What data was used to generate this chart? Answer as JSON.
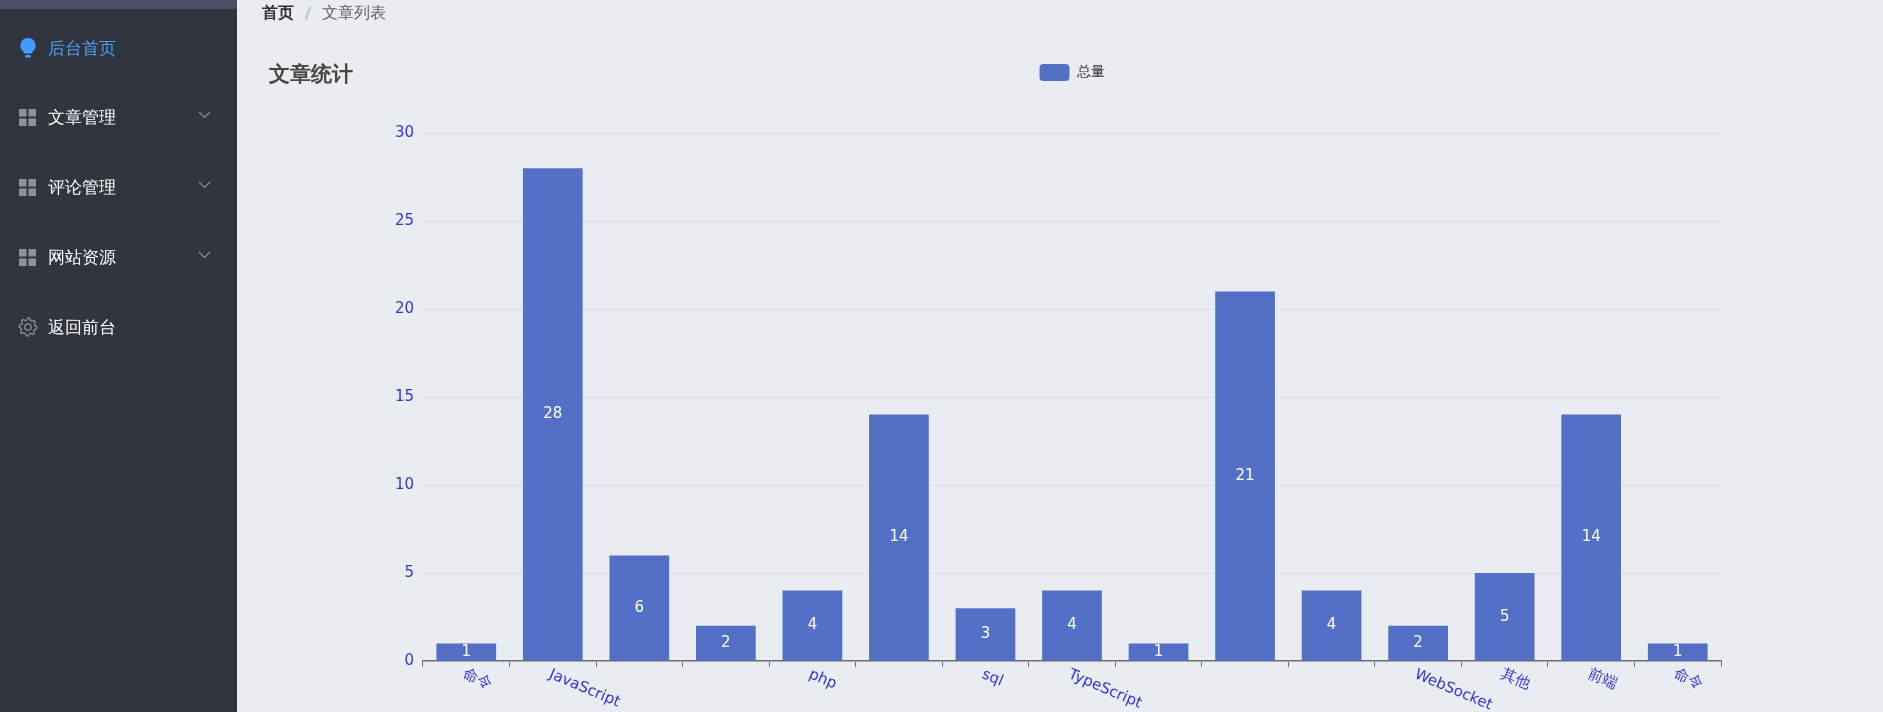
{
  "chart_data": {
    "type": "bar",
    "title": "文章统计",
    "categories": [
      "命令",
      "JavaScript",
      null,
      null,
      "php",
      null,
      "sql",
      "TypeScript",
      null,
      null,
      null,
      "WebSocket",
      "其他",
      "前端",
      "命令"
    ],
    "series": [
      {
        "name": "总量",
        "color": "#5470c6",
        "values": [
          1,
          28,
          6,
          2,
          4,
          14,
          3,
          4,
          1,
          21,
          4,
          2,
          5,
          14,
          1
        ]
      }
    ],
    "ylim": [
      0,
      30
    ],
    "yticks": [
      0,
      5,
      10,
      15,
      20,
      25,
      30
    ],
    "grid": "y",
    "legend": "top",
    "data_labels": true,
    "annotations": [
      "后台首页",
      "文章管理",
      "评论管理",
      "网站资源",
      "返回前台",
      "首页",
      "文章列表"
    ]
  }
}
